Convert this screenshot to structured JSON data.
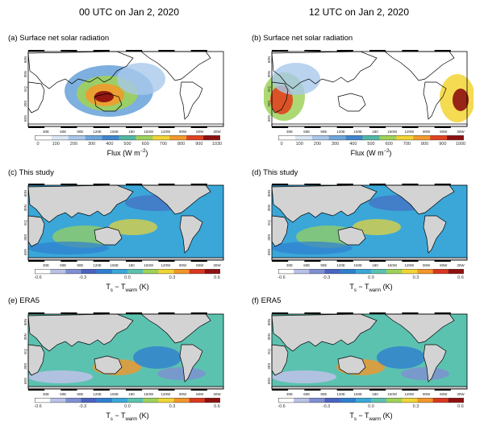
{
  "columns": [
    {
      "title": "00 UTC on Jan 2, 2020"
    },
    {
      "title": "12 UTC on Jan 2, 2020"
    }
  ],
  "panels": [
    {
      "label": "(a) Surface net solar radiation",
      "kind": "solar0"
    },
    {
      "label": "(b) Surface net solar radiation",
      "kind": "solar12"
    },
    {
      "label": "(c) This study",
      "kind": "study"
    },
    {
      "label": "(d) This study",
      "kind": "study"
    },
    {
      "label": "(e) ERA5",
      "kind": "era"
    },
    {
      "label": "(f) ERA5",
      "kind": "era"
    }
  ],
  "lat_labels": [
    "60N",
    "30N",
    "EQ",
    "30S",
    "60S"
  ],
  "lon_labels": [
    "30E",
    "60E",
    "90E",
    "120E",
    "150E",
    "180",
    "150W",
    "120W",
    "90W",
    "60W",
    "30W"
  ],
  "colorbars": {
    "solar_a": {
      "ticks": [
        "0",
        "100",
        "200",
        "300",
        "400",
        "500",
        "600",
        "700",
        "800",
        "900",
        "1030"
      ],
      "label": "Flux (W m",
      "label_sup": "−2",
      "label_end": ")"
    },
    "solar_b": {
      "ticks": [
        "0",
        "100",
        "200",
        "300",
        "400",
        "500",
        "600",
        "700",
        "800",
        "900",
        "1000"
      ],
      "label": "Flux (W m",
      "label_sup": "−2",
      "label_end": ")"
    },
    "diff": {
      "ticks": [
        "-0.6",
        "-0.3",
        "0.0",
        "0.3",
        "0.6"
      ],
      "label_t": "T",
      "label_s": "s",
      "label_mid": " − T",
      "label_w": "warm",
      "label_unit": " (K)"
    }
  },
  "colors": {
    "land": "#d3d3d3",
    "solar_scale": [
      "#ffffff",
      "#dbe7f5",
      "#a9c8ea",
      "#6fa6dc",
      "#3f86cf",
      "#4fb8a4",
      "#9ed25a",
      "#f2d534",
      "#f39a2b",
      "#e0421f",
      "#8e1010"
    ],
    "diff_scale": [
      "#ffffff",
      "#b9c2e6",
      "#7f8fd2",
      "#4a63c0",
      "#2f7fd0",
      "#3aa7d8",
      "#5cc2b0",
      "#9ed25a",
      "#f0d535",
      "#f2962a",
      "#d9381e",
      "#8e1010"
    ]
  }
}
